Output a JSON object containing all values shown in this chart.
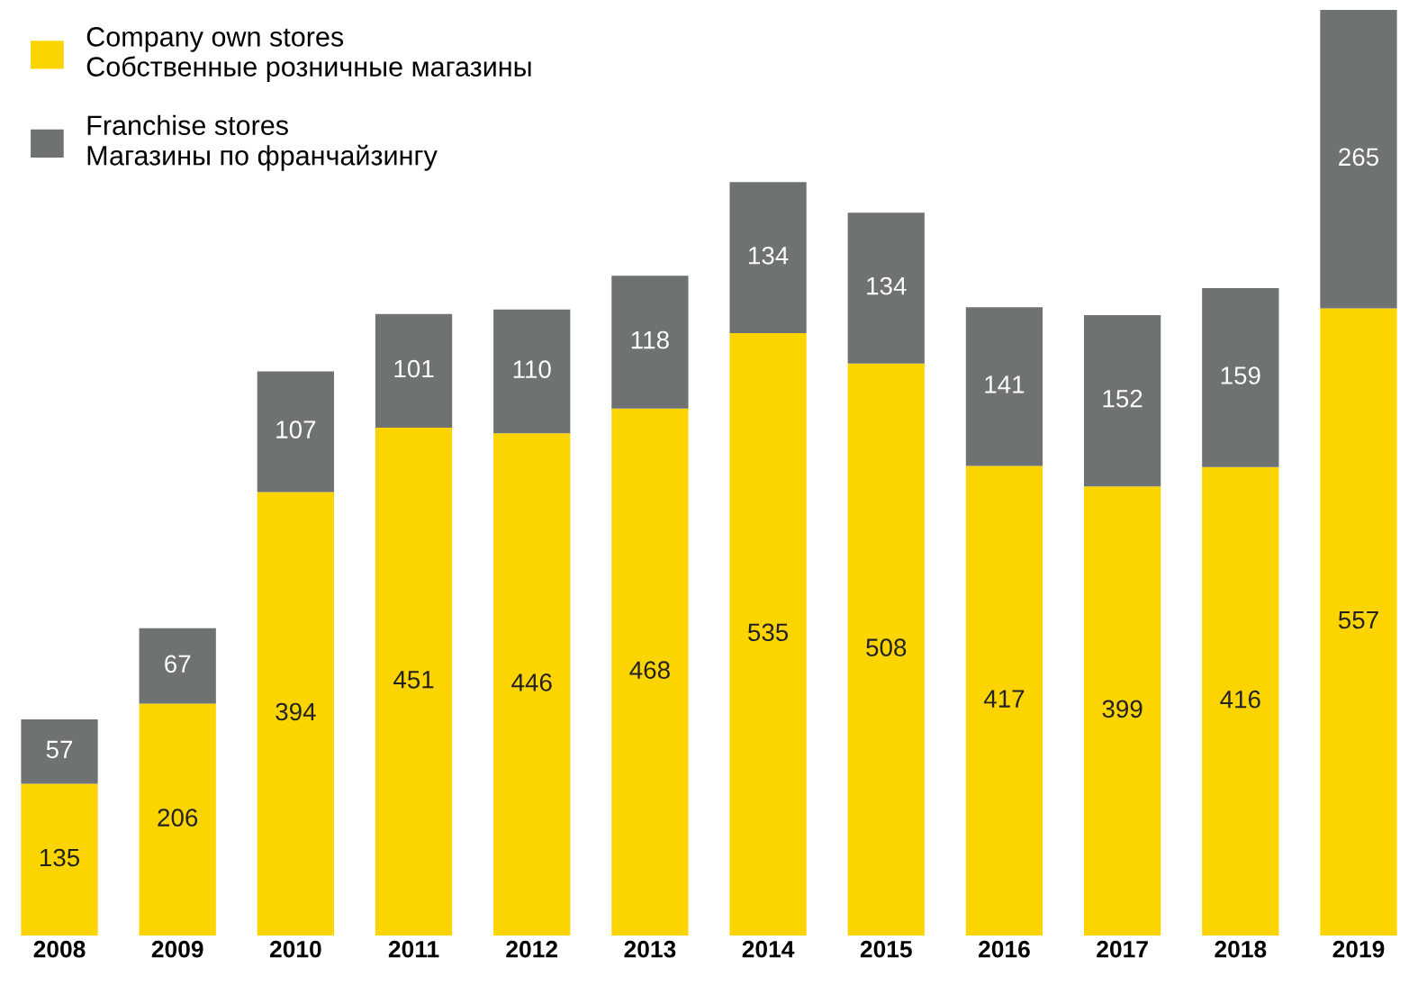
{
  "chart_data": {
    "type": "bar",
    "stacked": true,
    "data_labels": true,
    "legend": "top left",
    "grid": false,
    "categories": [
      "2008",
      "2009",
      "2010",
      "2011",
      "2012",
      "2013",
      "2014",
      "2015",
      "2016",
      "2017",
      "2018",
      "2019"
    ],
    "series": [
      {
        "name": "Company own stores\nСобственные розничные магазины",
        "color": "#fcd500",
        "values": [
          135,
          206,
          394,
          451,
          446,
          468,
          535,
          508,
          417,
          399,
          416,
          557
        ]
      },
      {
        "name": "Franchise stores\nМагазины по франчайзингу",
        "color": "#6e7273",
        "values": [
          57,
          67,
          107,
          101,
          110,
          118,
          134,
          134,
          141,
          152,
          159,
          265
        ]
      }
    ]
  }
}
